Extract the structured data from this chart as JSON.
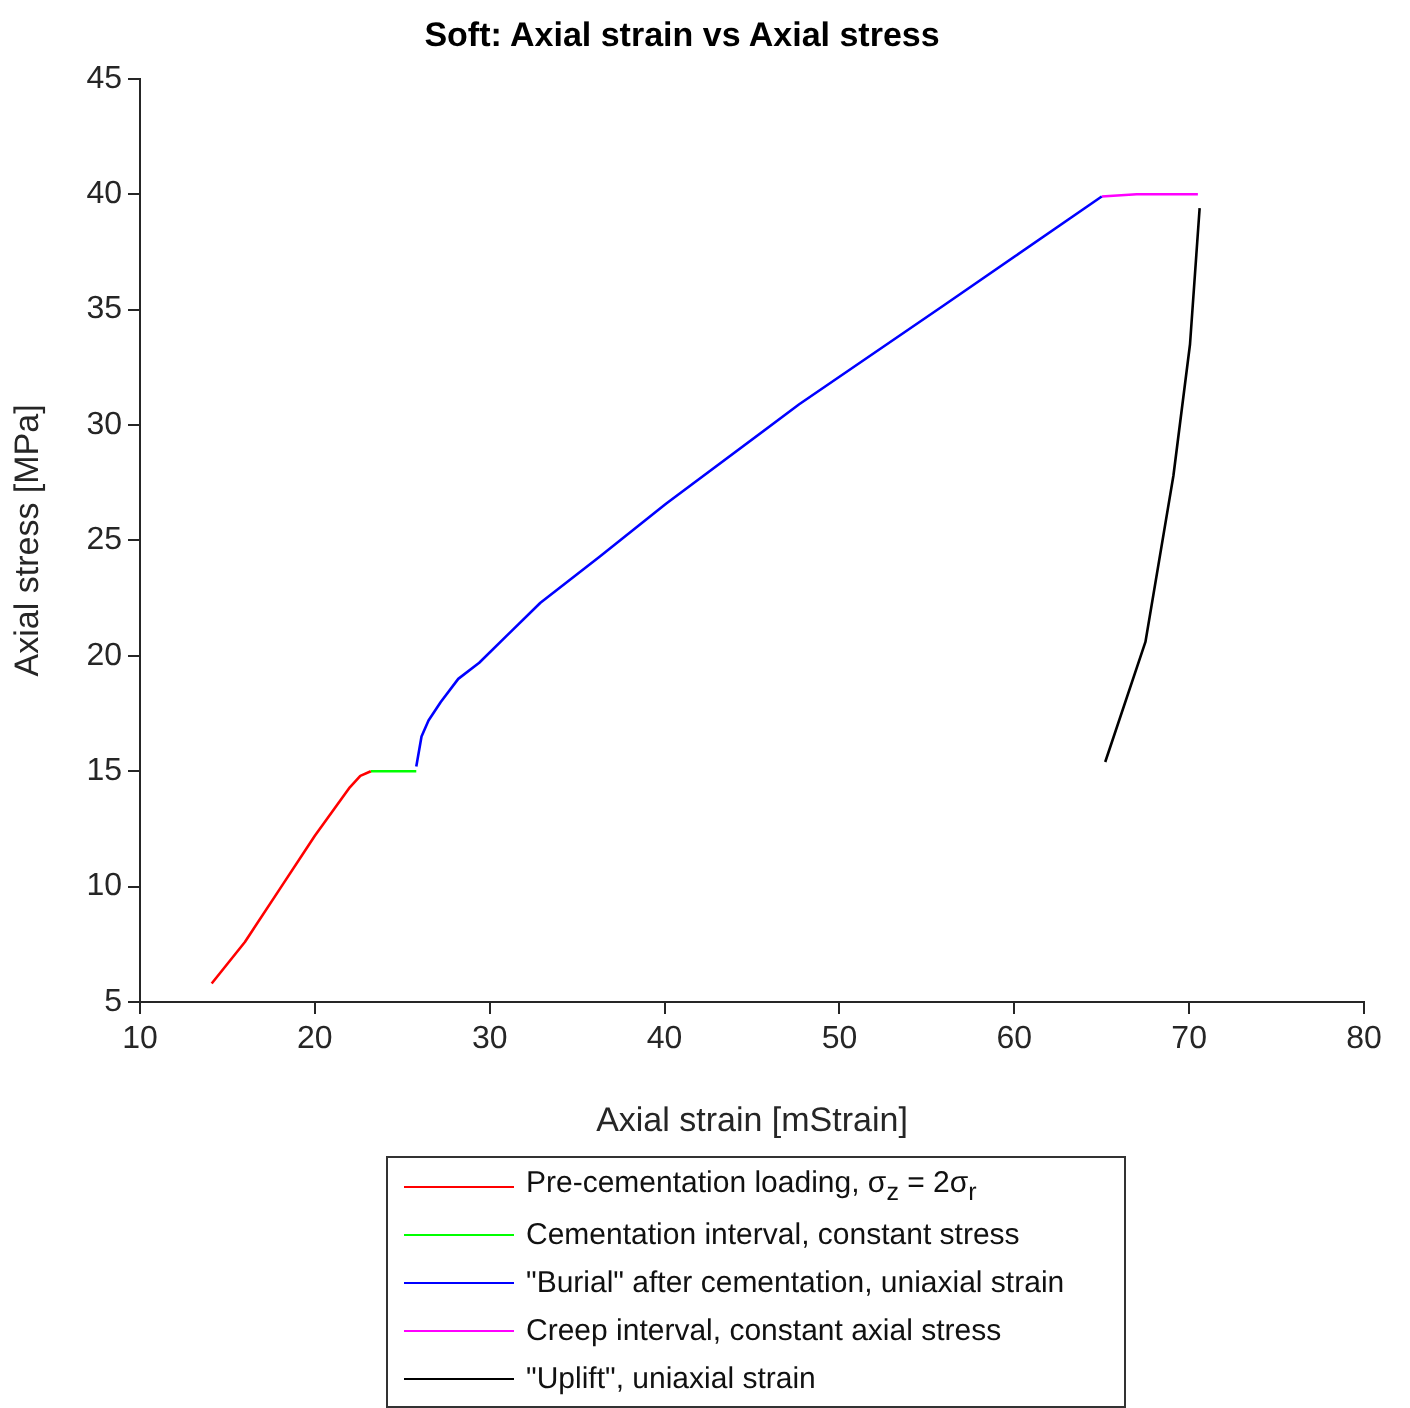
{
  "chart_data": {
    "type": "line",
    "title": "Soft: Axial strain vs Axial stress",
    "xlabel": "Axial strain [mStrain]",
    "ylabel": "Axial stress [MPa]",
    "xlim": [
      10,
      80
    ],
    "xticks": [
      10,
      20,
      30,
      40,
      50,
      60,
      70,
      80
    ],
    "ylim": [
      5,
      45
    ],
    "yticks": [
      5,
      10,
      15,
      20,
      25,
      30,
      35,
      40,
      45
    ],
    "grid": false,
    "legend": "bottom",
    "marker": "none",
    "line_style": "solid",
    "series": [
      {
        "name": "Pre-cementation loading, σ$_{z}$ = 2σ$_{r}$",
        "color": "#ff0000",
        "x": [
          14.1,
          16,
          18,
          20,
          22,
          22.6,
          23.2
        ],
        "values": [
          5.8,
          7.6,
          9.9,
          12.2,
          14.3,
          14.8,
          15
        ]
      },
      {
        "name": "Cementation interval, constant stress",
        "color": "#00ff00",
        "x": [
          23.2,
          25.8
        ],
        "values": [
          15,
          15
        ]
      },
      {
        "name": "\"Burial\" after cementation, uniaxial strain",
        "color": "#0000ff",
        "x": [
          25.8,
          26.1,
          26.5,
          27.2,
          28.2,
          29.4,
          32.9,
          36.3,
          40.1,
          47.7,
          56,
          65
        ],
        "values": [
          15.2,
          16.5,
          17.2,
          18,
          19,
          19.7,
          22.3,
          24.3,
          26.6,
          30.9,
          35.2,
          39.9
        ]
      },
      {
        "name": "Creep interval, constant axial stress",
        "color": "#ff00ff",
        "x": [
          65,
          67,
          70.5
        ],
        "values": [
          39.9,
          40,
          40
        ]
      },
      {
        "name": "\"Uplift\", uniaxial strain",
        "color": "#000000",
        "x": [
          70.6,
          70.05,
          69.1,
          67.5,
          65.2
        ],
        "values": [
          39.4,
          33.5,
          27.8,
          20.6,
          15.4
        ]
      }
    ]
  }
}
